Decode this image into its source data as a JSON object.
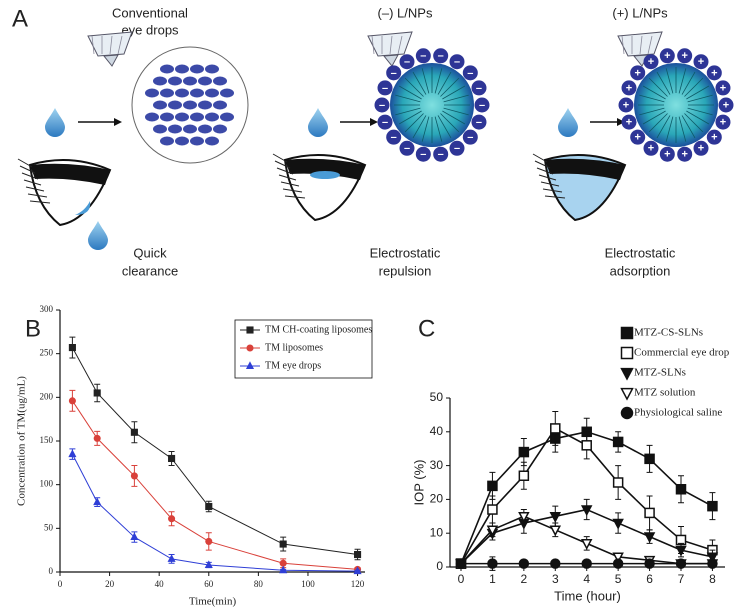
{
  "panel_a": {
    "label": "A",
    "columns": [
      {
        "title": [
          "Conventional",
          "eye drops"
        ],
        "caption": [
          "Quick",
          "clearance"
        ]
      },
      {
        "title": [
          "(–) L/NPs"
        ],
        "caption": [
          "Electrostatic",
          "repulsion"
        ],
        "charge": "–"
      },
      {
        "title": [
          "(+) L/NPs"
        ],
        "caption": [
          "Electrostatic",
          "adsorption"
        ],
        "charge": "+"
      }
    ]
  },
  "chart_data": [
    {
      "type": "line",
      "panel": "B",
      "x_label": "Time(min)",
      "y_label": "Concentration of TM(ug/mL)",
      "x": [
        5,
        15,
        30,
        45,
        60,
        90,
        120
      ],
      "xlim": [
        0,
        123
      ],
      "xticks": [
        0,
        20,
        40,
        60,
        80,
        100,
        120
      ],
      "ylim": [
        0,
        300
      ],
      "yticks": [
        0,
        50,
        100,
        150,
        200,
        250,
        300
      ],
      "legend": "upper right",
      "series": [
        {
          "name": "TM CH-coating liposomes",
          "color": "#222222",
          "marker": "square",
          "filled": true,
          "values": [
            257,
            205,
            160,
            130,
            75,
            32,
            20
          ],
          "errors": [
            12,
            10,
            12,
            8,
            6,
            8,
            6
          ]
        },
        {
          "name": "TM liposomes",
          "color": "#d9413a",
          "marker": "circle",
          "filled": true,
          "values": [
            196,
            153,
            110,
            61,
            35,
            10,
            3
          ],
          "errors": [
            12,
            8,
            12,
            8,
            10,
            5,
            2
          ]
        },
        {
          "name": "TM eye drops",
          "color": "#2f3fd6",
          "marker": "triangle",
          "filled": true,
          "values": [
            135,
            80,
            40,
            15,
            8,
            2,
            1
          ],
          "errors": [
            6,
            5,
            6,
            5,
            3,
            1,
            1
          ]
        }
      ]
    },
    {
      "type": "line",
      "panel": "C",
      "x_label": "Time (hour)",
      "y_label": "IOP (%)",
      "x": [
        0,
        1,
        2,
        3,
        4,
        5,
        6,
        7,
        8
      ],
      "xlim": [
        -0.35,
        8.4
      ],
      "xticks": [
        0,
        1,
        2,
        3,
        4,
        5,
        6,
        7,
        8
      ],
      "ylim": [
        0,
        50
      ],
      "yticks": [
        0,
        10,
        20,
        30,
        40,
        50
      ],
      "legend": "upper right",
      "series": [
        {
          "name": "MTZ-CS-SLNs",
          "color": "#111111",
          "marker": "square",
          "filled": true,
          "values": [
            1,
            24,
            34,
            38,
            40,
            37,
            32,
            23,
            18
          ],
          "errors": [
            1,
            4,
            4,
            4,
            4,
            3,
            4,
            4,
            4
          ]
        },
        {
          "name": "Commercial eye drop",
          "color": "#111111",
          "marker": "square",
          "filled": false,
          "values": [
            1,
            17,
            27,
            41,
            36,
            25,
            16,
            8,
            5
          ],
          "errors": [
            1,
            4,
            4,
            5,
            4,
            5,
            5,
            4,
            3
          ]
        },
        {
          "name": "MTZ-SLNs",
          "color": "#111111",
          "marker": "triangle-down",
          "filled": true,
          "values": [
            1,
            10,
            13,
            15,
            17,
            13,
            9,
            5,
            3
          ],
          "errors": [
            1,
            2,
            3,
            3,
            3,
            3,
            2,
            2,
            2
          ]
        },
        {
          "name": "MTZ solution",
          "color": "#111111",
          "marker": "triangle-down",
          "filled": false,
          "values": [
            1,
            11,
            15,
            11,
            7,
            3,
            2,
            1,
            1
          ],
          "errors": [
            1,
            2,
            2,
            2,
            2,
            1,
            1,
            1,
            1
          ]
        },
        {
          "name": "Physiological saline",
          "color": "#111111",
          "marker": "circle",
          "filled": true,
          "values": [
            1,
            1,
            1,
            1,
            1,
            1,
            1,
            1,
            1
          ],
          "errors": [
            0,
            2,
            1,
            1,
            1,
            1,
            1,
            1,
            0
          ]
        }
      ]
    }
  ]
}
